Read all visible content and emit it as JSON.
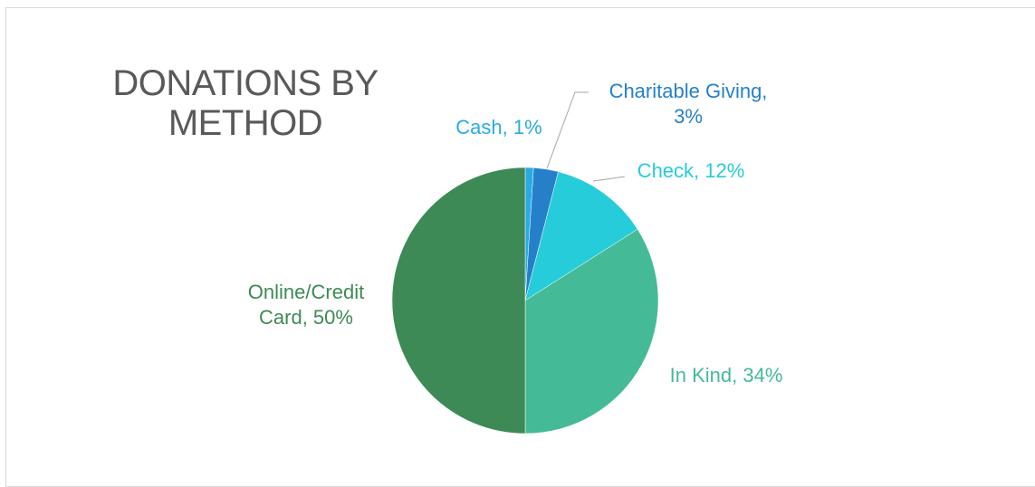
{
  "chart_data": {
    "type": "pie",
    "title": "DONATIONS BY METHOD",
    "title_lines": [
      "DONATIONS BY",
      "METHOD"
    ],
    "slices": [
      {
        "name": "Cash",
        "value": 1,
        "color": "#29ABE2",
        "label_lines": [
          "Cash, 1%"
        ]
      },
      {
        "name": "Charitable Giving",
        "value": 3,
        "color": "#2680C9",
        "label_lines": [
          "Charitable Giving,",
          "3%"
        ]
      },
      {
        "name": "Check",
        "value": 12,
        "color": "#26CCD9",
        "label_lines": [
          "Check, 12%"
        ]
      },
      {
        "name": "In Kind",
        "value": 34,
        "color": "#45BA96",
        "label_lines": [
          "In Kind, 34%"
        ]
      },
      {
        "name": "Online/Credit Card",
        "value": 50,
        "color": "#3D8A56",
        "label_lines": [
          "Online/Credit",
          "Card, 50%"
        ]
      }
    ],
    "start_angle_deg": 0,
    "direction": "clockwise",
    "legend": "none",
    "data_labels": "outside"
  }
}
